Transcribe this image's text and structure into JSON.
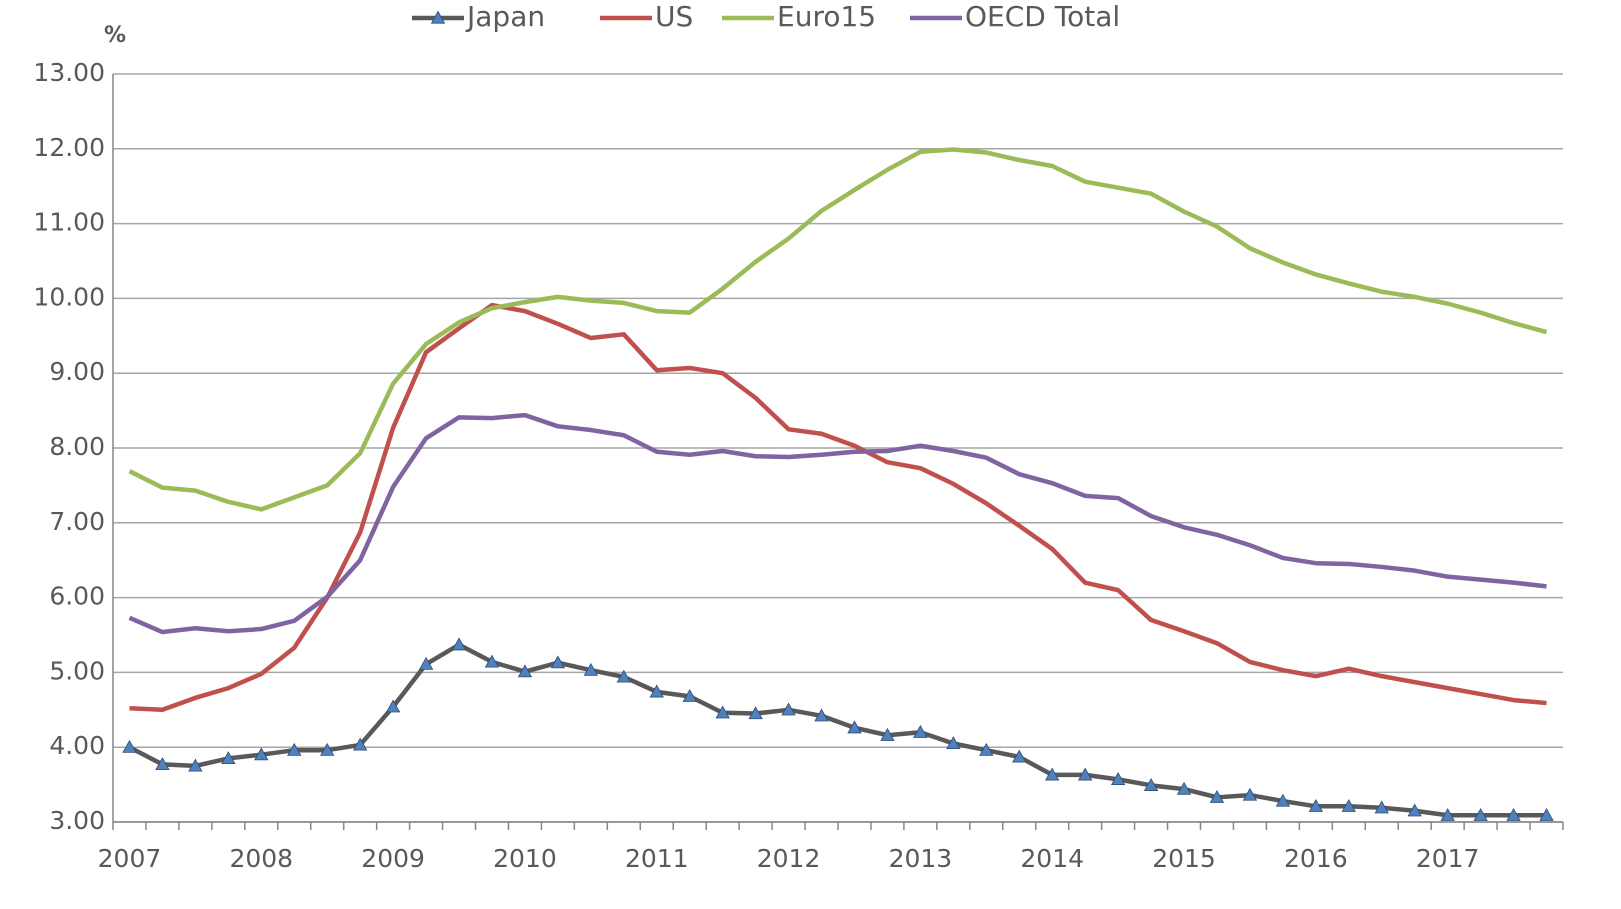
{
  "chart_data": {
    "type": "line",
    "ylabel": "%",
    "categories": [
      "2007",
      null,
      null,
      null,
      "2008",
      null,
      null,
      null,
      "2009",
      null,
      null,
      null,
      "2010",
      null,
      null,
      null,
      "2011",
      null,
      null,
      null,
      "2012",
      null,
      null,
      null,
      "2013",
      null,
      null,
      null,
      "2014",
      null,
      null,
      null,
      "2015",
      null,
      null,
      null,
      "2016",
      null,
      null,
      null,
      "2017",
      null,
      null,
      null
    ],
    "series": [
      {
        "name": "Japan",
        "color": "#595959",
        "marker": "triangle",
        "marker_color": "#4f81bd",
        "values": [
          4.0,
          3.77,
          3.75,
          3.85,
          3.9,
          3.96,
          3.96,
          4.03,
          4.54,
          5.11,
          5.37,
          5.14,
          5.01,
          5.13,
          5.03,
          4.94,
          4.74,
          4.68,
          4.46,
          4.45,
          4.5,
          4.42,
          4.26,
          4.16,
          4.2,
          4.05,
          3.96,
          3.87,
          3.63,
          3.63,
          3.57,
          3.49,
          3.44,
          3.33,
          3.36,
          3.28,
          3.21,
          3.21,
          3.19,
          3.15,
          3.09,
          3.09,
          3.09,
          3.09
        ]
      },
      {
        "name": "US",
        "color": "#c0504d",
        "values": [
          4.52,
          4.5,
          4.66,
          4.79,
          4.98,
          5.33,
          6.0,
          6.87,
          8.27,
          9.28,
          9.6,
          9.91,
          9.83,
          9.66,
          9.47,
          9.52,
          9.04,
          9.07,
          9.0,
          8.67,
          8.25,
          8.19,
          8.03,
          7.81,
          7.73,
          7.52,
          7.26,
          6.96,
          6.65,
          6.2,
          6.1,
          5.7,
          5.55,
          5.39,
          5.14,
          5.03,
          4.95,
          5.05,
          4.95,
          4.87,
          4.79,
          4.71,
          4.63,
          4.59
        ]
      },
      {
        "name": "Euro15",
        "color": "#9bbb59",
        "values": [
          7.69,
          7.47,
          7.43,
          7.28,
          7.18,
          7.34,
          7.5,
          7.93,
          8.86,
          9.39,
          9.68,
          9.87,
          9.95,
          10.02,
          9.97,
          9.94,
          9.83,
          9.81,
          10.13,
          10.49,
          10.8,
          11.17,
          11.45,
          11.72,
          11.96,
          11.99,
          11.95,
          11.85,
          11.77,
          11.56,
          11.48,
          11.4,
          11.16,
          10.96,
          10.67,
          10.48,
          10.32,
          10.2,
          10.09,
          10.02,
          9.93,
          9.81,
          9.67,
          9.55
        ]
      },
      {
        "name": "OECD Total",
        "color": "#8064a2",
        "values": [
          5.73,
          5.54,
          5.59,
          5.55,
          5.58,
          5.69,
          6.01,
          6.5,
          7.48,
          8.13,
          8.41,
          8.4,
          8.44,
          8.29,
          8.24,
          8.17,
          7.95,
          7.91,
          7.96,
          7.89,
          7.88,
          7.91,
          7.95,
          7.96,
          8.03,
          7.96,
          7.87,
          7.65,
          7.53,
          7.36,
          7.33,
          7.09,
          6.94,
          6.84,
          6.7,
          6.53,
          6.46,
          6.45,
          6.41,
          6.36,
          6.28,
          6.24,
          6.2,
          6.15
        ]
      }
    ],
    "ylim": [
      3,
      13
    ],
    "yticks": [
      {
        "value": 3,
        "label": "3.00"
      },
      {
        "value": 4,
        "label": "4.00"
      },
      {
        "value": 5,
        "label": "5.00"
      },
      {
        "value": 6,
        "label": "6.00"
      },
      {
        "value": 7,
        "label": "7.00"
      },
      {
        "value": 8,
        "label": "8.00"
      },
      {
        "value": 9,
        "label": "9.00"
      },
      {
        "value": 10,
        "label": "10.00"
      },
      {
        "value": 11,
        "label": "11.00"
      },
      {
        "value": 12,
        "label": "12.00"
      },
      {
        "value": 13,
        "label": "13.00"
      }
    ],
    "grid": true,
    "legend": "top"
  }
}
